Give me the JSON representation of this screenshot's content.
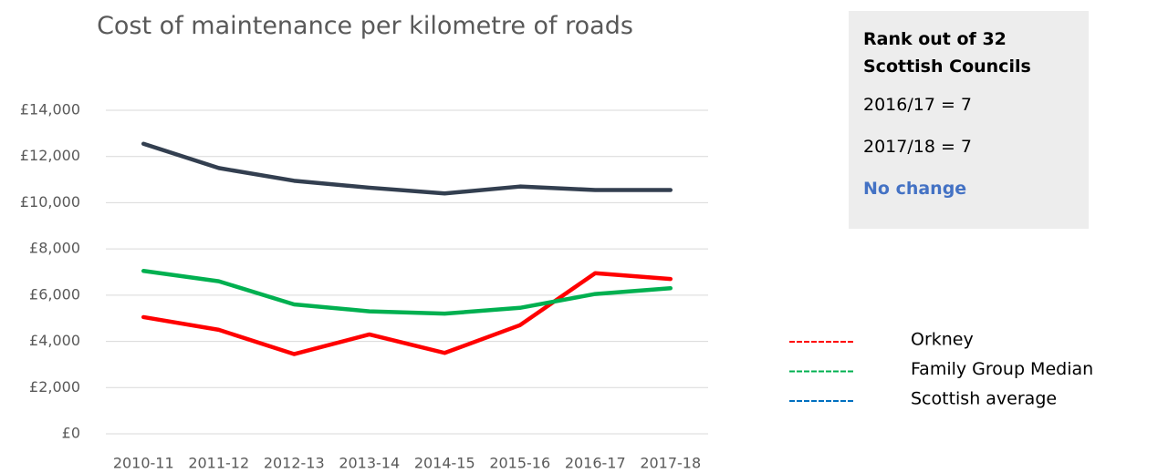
{
  "chart_data": {
    "type": "line",
    "title": "Cost of maintenance per kilometre of roads",
    "categories": [
      "2010-11",
      "2011-12",
      "2012-13",
      "2013-14",
      "2014-15",
      "2015-16",
      "2016-17",
      "2017-18"
    ],
    "series": [
      {
        "name": "Orkney",
        "color": "#ff0000",
        "legend_color": "#ff0000",
        "values": [
          5050,
          4500,
          3450,
          4300,
          3500,
          4700,
          6950,
          6700
        ]
      },
      {
        "name": "Family Group Median",
        "color": "#00b050",
        "legend_color": "#00b050",
        "values": [
          7050,
          6600,
          5600,
          5300,
          5200,
          5450,
          6050,
          6300
        ]
      },
      {
        "name": "Scottish average",
        "color": "#333f50",
        "legend_color": "#0070c0",
        "values": [
          12550,
          11500,
          10950,
          10650,
          10400,
          10700,
          10550,
          10550
        ]
      }
    ],
    "ylim": [
      0,
      14000
    ],
    "yticks": [
      {
        "value": 0,
        "label": "£0"
      },
      {
        "value": 2000,
        "label": "£2,000"
      },
      {
        "value": 4000,
        "label": "£4,000"
      },
      {
        "value": 6000,
        "label": "£6,000"
      },
      {
        "value": 8000,
        "label": "£8,000"
      },
      {
        "value": 10000,
        "label": "£10,000"
      },
      {
        "value": 12000,
        "label": "£12,000"
      },
      {
        "value": 14000,
        "label": "£14,000"
      }
    ],
    "grid": true,
    "rank_box": {
      "heading": "Rank out of 32 Scottish Councils",
      "lines": [
        "2016/17 = 7",
        "2017/18 = 7"
      ],
      "change": "No change"
    }
  }
}
